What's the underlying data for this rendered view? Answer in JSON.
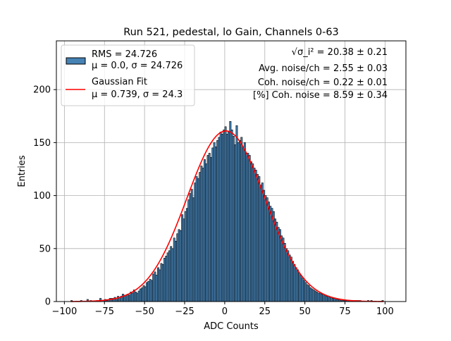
{
  "chart_data": {
    "type": "histogram",
    "title": "Run 521, pedestal, lo Gain, Channels 0-63",
    "xlabel": "ADC Counts",
    "ylabel": "Entries",
    "xlim": [
      -105,
      113
    ],
    "ylim": [
      0,
      246
    ],
    "xticks": [
      -100,
      -75,
      -50,
      -25,
      0,
      25,
      50,
      75,
      100
    ],
    "yticks": [
      0,
      50,
      100,
      150,
      200
    ],
    "grid": true,
    "legend_position": "top-left",
    "bar_color": "#4682b4",
    "bar_edge_color": "#000000",
    "fit_color": "#ff0000",
    "bin_width": 1,
    "bins": {
      "x_start": -96,
      "values": [
        1,
        0,
        0,
        0,
        0,
        0,
        1,
        0,
        0,
        0,
        2,
        0,
        1,
        0,
        0,
        0,
        1,
        0,
        3,
        0,
        1,
        2,
        1,
        2,
        3,
        3,
        3,
        4,
        2,
        5,
        4,
        5,
        7,
        6,
        6,
        7,
        6,
        9,
        8,
        11,
        9,
        8,
        10,
        12,
        13,
        15,
        14,
        18,
        19,
        21,
        20,
        26,
        28,
        25,
        32,
        30,
        36,
        35,
        41,
        43,
        46,
        48,
        52,
        50,
        60,
        57,
        64,
        68,
        67,
        82,
        78,
        85,
        88,
        96,
        102,
        106,
        98,
        112,
        118,
        116,
        122,
        128,
        126,
        134,
        130,
        138,
        140,
        136,
        145,
        150,
        146,
        152,
        155,
        160,
        158,
        162,
        165,
        158,
        160,
        170,
        162,
        156,
        148,
        166,
        150,
        152,
        155,
        145,
        150,
        140,
        140,
        138,
        132,
        130,
        126,
        124,
        120,
        118,
        110,
        112,
        105,
        100,
        98,
        94,
        90,
        88,
        85,
        78,
        75,
        70,
        68,
        62,
        60,
        55,
        50,
        48,
        44,
        42,
        38,
        35,
        32,
        30,
        27,
        25,
        22,
        20,
        18,
        16,
        15,
        13,
        12,
        11,
        10,
        9,
        8,
        8,
        7,
        7,
        6,
        5,
        5,
        4,
        4,
        3,
        3,
        2,
        2,
        2,
        1,
        1,
        1,
        1,
        1,
        1,
        0,
        1,
        1,
        1,
        1,
        1,
        1,
        0,
        0,
        0,
        0,
        1,
        0,
        1,
        0,
        0,
        0,
        0,
        0,
        0,
        1
      ]
    },
    "legend": [
      {
        "type": "patch",
        "line1": "RMS = 24.726",
        "line2": "μ = 0.0, σ = 24.726"
      },
      {
        "type": "line",
        "line1": "Gaussian Fit",
        "line2": "μ = 0.739, σ = 24.3"
      }
    ],
    "fit": {
      "mu": 0.739,
      "sigma": 24.3,
      "amplitude": 161
    },
    "annotations": [
      "√σ_i² = 20.38 ± 0.21",
      "Avg. noise/ch = 2.55 ± 0.03",
      "Coh. noise/ch = 0.22 ± 0.01",
      "[%] Coh. noise = 8.59 ± 0.34"
    ]
  }
}
